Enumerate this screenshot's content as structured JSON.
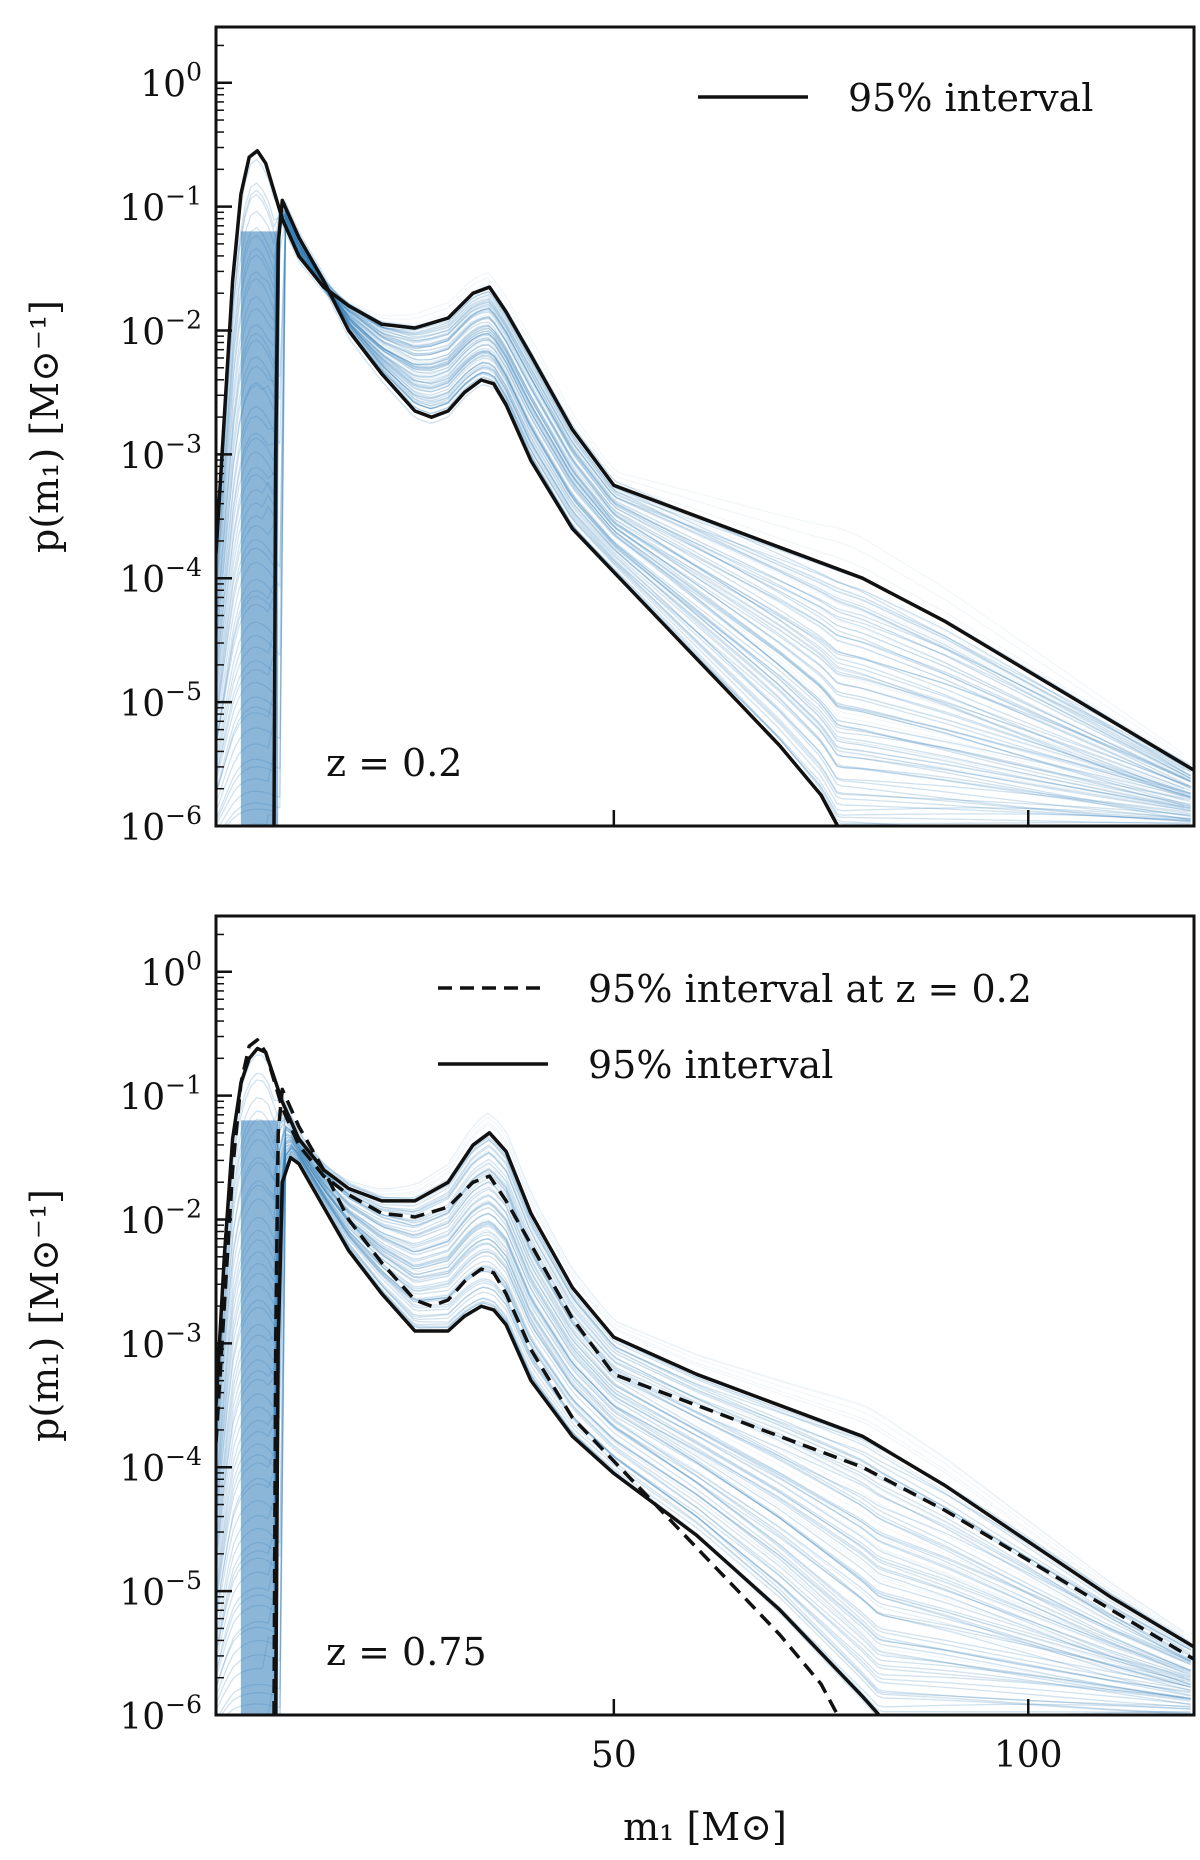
{
  "chart_data": [
    {
      "type": "line",
      "panel": "top",
      "annotation": "z = 0.2",
      "xlabel": "m₁ [M⊙]",
      "ylabel": "p(m₁) [M⊙⁻¹]",
      "xlim": [
        2,
        120
      ],
      "ylim_log10": [
        -6,
        0.45
      ],
      "xscale": "linear",
      "yscale": "log",
      "y_ticks": [
        {
          "value": -6,
          "base": "10",
          "exp": "−6"
        },
        {
          "value": -5,
          "base": "10",
          "exp": "−5"
        },
        {
          "value": -4,
          "base": "10",
          "exp": "−4"
        },
        {
          "value": -3,
          "base": "10",
          "exp": "−3"
        },
        {
          "value": -2,
          "base": "10",
          "exp": "−2"
        },
        {
          "value": -1,
          "base": "10",
          "exp": "−1"
        },
        {
          "value": 0,
          "base": "10",
          "exp": "0"
        }
      ],
      "x_ticks": [
        {
          "value": 50,
          "label": ""
        },
        {
          "value": 100,
          "label": ""
        }
      ],
      "legend": [
        {
          "label": "95% interval",
          "style": "solid"
        }
      ],
      "legend_position": "top-right",
      "band_color": "#2e7ab8",
      "series": [
        {
          "name": "95% upper",
          "style": "solid",
          "x": [
            2,
            3,
            4,
            5,
            6,
            7,
            8,
            10,
            12,
            15,
            18,
            22,
            26,
            30,
            33,
            35,
            37,
            40,
            45,
            50,
            60,
            70,
            80,
            90,
            100,
            110,
            120
          ],
          "log10_y": [
            -3.8,
            -2.7,
            -1.6,
            -0.9,
            -0.6,
            -0.55,
            -0.65,
            -1.1,
            -1.4,
            -1.65,
            -1.8,
            -1.95,
            -1.98,
            -1.9,
            -1.7,
            -1.65,
            -1.85,
            -2.2,
            -2.8,
            -3.25,
            -3.5,
            -3.75,
            -4.0,
            -4.35,
            -4.75,
            -5.15,
            -5.55
          ]
        },
        {
          "name": "95% lower",
          "style": "solid",
          "x": [
            9.0,
            9.2,
            9.5,
            10,
            12,
            15,
            18,
            22,
            26,
            28,
            30,
            32,
            34,
            35.5,
            37,
            40,
            45,
            50,
            55,
            60,
            65,
            70,
            75,
            77
          ],
          "log10_y": [
            -6.0,
            -3.0,
            -1.3,
            -0.95,
            -1.25,
            -1.6,
            -2.0,
            -2.35,
            -2.65,
            -2.7,
            -2.65,
            -2.5,
            -2.4,
            -2.43,
            -2.6,
            -3.05,
            -3.6,
            -3.95,
            -4.3,
            -4.65,
            -5.0,
            -5.35,
            -5.75,
            -6.0
          ]
        }
      ]
    },
    {
      "type": "line",
      "panel": "bottom",
      "annotation": "z = 0.75",
      "xlabel": "m₁ [M⊙]",
      "ylabel": "p(m₁) [M⊙⁻¹]",
      "xlim": [
        2,
        120
      ],
      "ylim_log10": [
        -6,
        0.45
      ],
      "xscale": "linear",
      "yscale": "log",
      "y_ticks": [
        {
          "value": -6,
          "base": "10",
          "exp": "−6"
        },
        {
          "value": -5,
          "base": "10",
          "exp": "−5"
        },
        {
          "value": -4,
          "base": "10",
          "exp": "−4"
        },
        {
          "value": -3,
          "base": "10",
          "exp": "−3"
        },
        {
          "value": -2,
          "base": "10",
          "exp": "−2"
        },
        {
          "value": -1,
          "base": "10",
          "exp": "−1"
        },
        {
          "value": 0,
          "base": "10",
          "exp": "0"
        }
      ],
      "x_ticks": [
        {
          "value": 50,
          "label": "50"
        },
        {
          "value": 100,
          "label": "100"
        }
      ],
      "legend": [
        {
          "label": "95% interval at z = 0.2",
          "style": "dashed"
        },
        {
          "label": "95% interval",
          "style": "solid"
        }
      ],
      "legend_position": "top-right",
      "band_color": "#2e7ab8",
      "series": [
        {
          "name": "95% upper",
          "style": "solid",
          "x": [
            2,
            3,
            4,
            5,
            6,
            7,
            8,
            10,
            12,
            15,
            18,
            22,
            26,
            30,
            33,
            35,
            37,
            40,
            45,
            50,
            60,
            70,
            80,
            90,
            100,
            110,
            120
          ],
          "log10_y": [
            -3.5,
            -2.3,
            -1.35,
            -0.9,
            -0.7,
            -0.62,
            -0.65,
            -1.05,
            -1.35,
            -1.6,
            -1.75,
            -1.85,
            -1.85,
            -1.7,
            -1.4,
            -1.3,
            -1.45,
            -1.95,
            -2.55,
            -2.95,
            -3.25,
            -3.5,
            -3.75,
            -4.15,
            -4.6,
            -5.05,
            -5.45
          ]
        },
        {
          "name": "95% lower",
          "style": "solid",
          "x": [
            9.2,
            9.5,
            10,
            11,
            12,
            15,
            18,
            22,
            26,
            30,
            32,
            34,
            35.5,
            37,
            40,
            45,
            50,
            55,
            60,
            65,
            70,
            75,
            80,
            82
          ],
          "log10_y": [
            -6.0,
            -3.0,
            -1.7,
            -1.5,
            -1.55,
            -1.9,
            -2.25,
            -2.6,
            -2.9,
            -2.9,
            -2.78,
            -2.7,
            -2.73,
            -2.85,
            -3.3,
            -3.75,
            -4.05,
            -4.3,
            -4.55,
            -4.85,
            -5.15,
            -5.5,
            -5.85,
            -6.0
          ]
        },
        {
          "name": "95% upper at z = 0.2",
          "style": "dashed",
          "x": [
            2,
            3,
            4,
            5,
            6,
            7,
            8,
            10,
            12,
            15,
            18,
            22,
            26,
            30,
            33,
            35,
            37,
            40,
            45,
            50,
            60,
            70,
            80,
            90,
            100,
            110,
            120
          ],
          "log10_y": [
            -3.8,
            -2.7,
            -1.6,
            -0.9,
            -0.6,
            -0.55,
            -0.65,
            -1.1,
            -1.4,
            -1.65,
            -1.8,
            -1.95,
            -1.98,
            -1.9,
            -1.7,
            -1.65,
            -1.85,
            -2.2,
            -2.8,
            -3.25,
            -3.5,
            -3.75,
            -4.0,
            -4.35,
            -4.75,
            -5.15,
            -5.55
          ]
        },
        {
          "name": "95% lower at z = 0.2",
          "style": "dashed",
          "x": [
            9.0,
            9.2,
            9.5,
            10,
            12,
            15,
            18,
            22,
            26,
            28,
            30,
            32,
            34,
            35.5,
            37,
            40,
            45,
            50,
            55,
            60,
            65,
            70,
            75,
            77
          ],
          "log10_y": [
            -6.0,
            -3.0,
            -1.3,
            -0.95,
            -1.25,
            -1.6,
            -2.0,
            -2.35,
            -2.65,
            -2.7,
            -2.65,
            -2.5,
            -2.4,
            -2.43,
            -2.6,
            -3.05,
            -3.6,
            -3.95,
            -4.3,
            -4.65,
            -5.0,
            -5.35,
            -5.75,
            -6.0
          ]
        }
      ]
    }
  ]
}
